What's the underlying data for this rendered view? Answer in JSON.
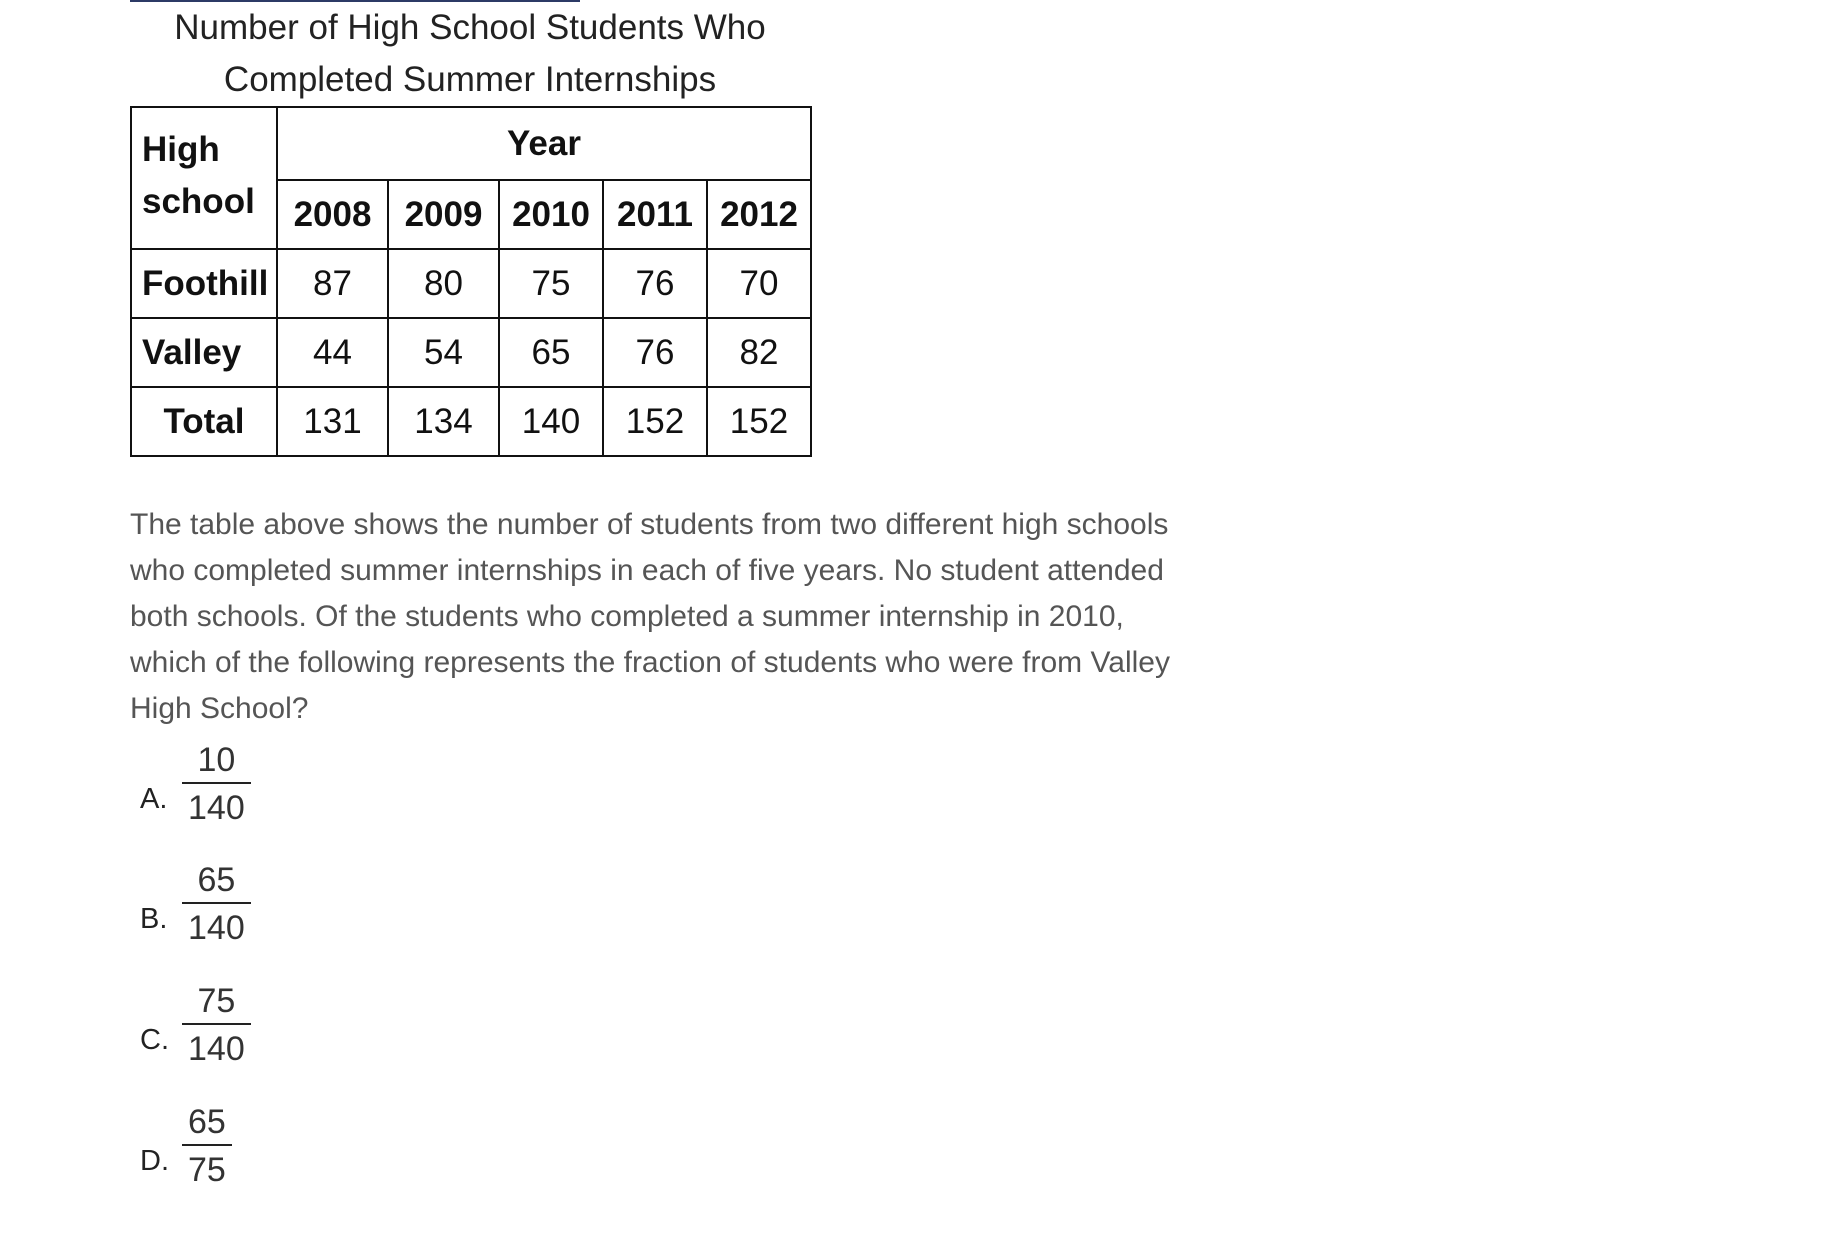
{
  "table": {
    "title_line1": "Number of High School Students Who",
    "title_line2": "Completed Summer Internships",
    "corner_line1": "High",
    "corner_line2": "school",
    "year_header": "Year",
    "years": [
      "2008",
      "2009",
      "2010",
      "2011",
      "2012"
    ],
    "rows": [
      {
        "label": "Foothill",
        "values": [
          "87",
          "80",
          "75",
          "76",
          "70"
        ]
      },
      {
        "label": "Valley",
        "values": [
          "44",
          "54",
          "65",
          "76",
          "82"
        ]
      },
      {
        "label": "Total",
        "values": [
          "131",
          "134",
          "140",
          "152",
          "152"
        ]
      }
    ]
  },
  "question": {
    "text": "The table above shows the number of students from two different high schools who completed summer internships in each of five years. No student attended both schools. Of the students who completed a summer internship in 2010, which of the following represents the fraction of students who were from Valley High School?"
  },
  "choices": [
    {
      "letter": "A.",
      "numerator": "10",
      "denominator": "140"
    },
    {
      "letter": "B.",
      "numerator": "65",
      "denominator": "140"
    },
    {
      "letter": "C.",
      "numerator": "75",
      "denominator": "140"
    },
    {
      "letter": "D.",
      "numerator": "65",
      "denominator": "75"
    }
  ]
}
